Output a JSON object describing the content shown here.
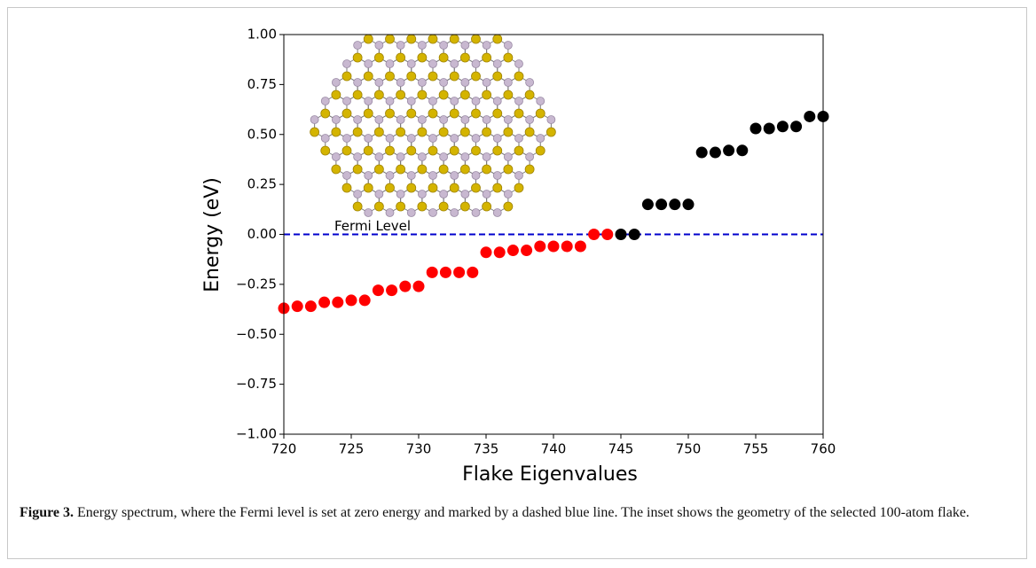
{
  "chart_data": {
    "type": "scatter",
    "xlabel": "Flake Eigenvalues",
    "ylabel": "Energy (eV)",
    "series": [
      {
        "color": "#ff0000",
        "x": [
          720,
          721,
          722,
          723,
          724,
          725,
          726,
          727,
          728,
          729,
          730,
          731,
          732,
          733,
          734,
          735,
          736,
          737,
          738,
          739,
          740,
          741,
          742,
          743,
          744
        ],
        "values": [
          -0.37,
          -0.36,
          -0.36,
          -0.34,
          -0.34,
          -0.33,
          -0.33,
          -0.28,
          -0.28,
          -0.26,
          -0.26,
          -0.19,
          -0.19,
          -0.19,
          -0.19,
          -0.09,
          -0.09,
          -0.08,
          -0.08,
          -0.06,
          -0.06,
          -0.06,
          -0.06,
          0.0,
          0.0
        ]
      },
      {
        "color": "#000000",
        "x": [
          745,
          746,
          747,
          748,
          749,
          750,
          751,
          752,
          753,
          754,
          755,
          756,
          757,
          758,
          759,
          760
        ],
        "values": [
          0.0,
          0.0,
          0.15,
          0.15,
          0.15,
          0.15,
          0.41,
          0.41,
          0.42,
          0.42,
          0.53,
          0.53,
          0.54,
          0.54,
          0.59,
          0.59
        ]
      }
    ],
    "xlim": [
      720,
      760
    ],
    "xticks": [
      720,
      725,
      730,
      735,
      740,
      745,
      750,
      755,
      760
    ],
    "ylim": [
      -1,
      1
    ],
    "yticks": [
      {
        "value": -1,
        "label": "−1.00"
      },
      {
        "value": -0.75,
        "label": "−0.75"
      },
      {
        "value": -0.5,
        "label": "−0.50"
      },
      {
        "value": -0.25,
        "label": "−0.25"
      },
      {
        "value": 0,
        "label": "0.00"
      },
      {
        "value": 0.25,
        "label": "0.25"
      },
      {
        "value": 0.5,
        "label": "0.50"
      },
      {
        "value": 0.75,
        "label": "0.75"
      },
      {
        "value": 1,
        "label": "1.00"
      }
    ],
    "reference_line": {
      "y": 0,
      "label": "Fermi Level",
      "color": "#0000cc",
      "style": "dashed"
    }
  },
  "caption": {
    "label": "Figure 3.",
    "text": "Energy spectrum, where the Fermi level is set at zero energy and marked by a dashed blue line. The inset shows the geometry of the selected 100-atom flake."
  }
}
